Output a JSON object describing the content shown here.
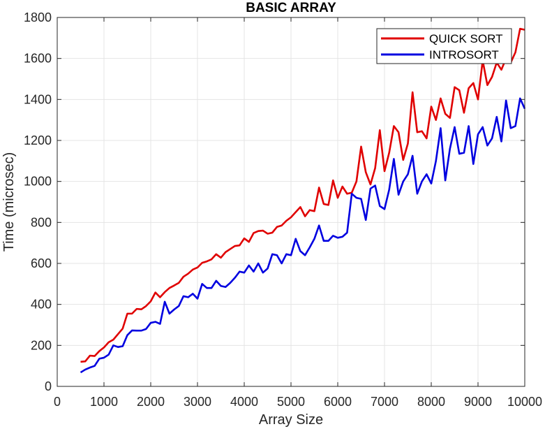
{
  "chart_data": {
    "type": "line",
    "title": "BASIC ARRAY",
    "xlabel": "Array Size",
    "ylabel": "Time (microsec)",
    "xlim": [
      0,
      10000
    ],
    "ylim": [
      0,
      1800
    ],
    "xticks": [
      0,
      1000,
      2000,
      3000,
      4000,
      5000,
      6000,
      7000,
      8000,
      9000,
      10000
    ],
    "yticks": [
      0,
      200,
      400,
      600,
      800,
      1000,
      1200,
      1400,
      1600,
      1800
    ],
    "xtick_labels": [
      "0",
      "1000",
      "2000",
      "3000",
      "4000",
      "5000",
      "6000",
      "7000",
      "8000",
      "9000",
      "10000"
    ],
    "ytick_labels": [
      "0",
      "200",
      "400",
      "600",
      "800",
      "1000",
      "1200",
      "1400",
      "1600",
      "1800"
    ],
    "grid": true,
    "legend_position": "top-right",
    "x": [
      500,
      600,
      700,
      800,
      900,
      1000,
      1100,
      1200,
      1300,
      1400,
      1500,
      1600,
      1700,
      1800,
      1900,
      2000,
      2100,
      2200,
      2300,
      2400,
      2500,
      2600,
      2700,
      2800,
      2900,
      3000,
      3100,
      3200,
      3300,
      3400,
      3500,
      3600,
      3700,
      3800,
      3900,
      4000,
      4100,
      4200,
      4300,
      4400,
      4500,
      4600,
      4700,
      4800,
      4900,
      5000,
      5100,
      5200,
      5300,
      5400,
      5500,
      5600,
      5700,
      5800,
      5900,
      6000,
      6100,
      6200,
      6300,
      6400,
      6500,
      6600,
      6700,
      6800,
      6900,
      7000,
      7100,
      7200,
      7300,
      7400,
      7500,
      7600,
      7700,
      7800,
      7900,
      8000,
      8100,
      8200,
      8300,
      8400,
      8500,
      8600,
      8700,
      8800,
      8900,
      9000,
      9100,
      9200,
      9300,
      9400,
      9500,
      9600,
      9700,
      9800,
      9900,
      10000
    ],
    "series": [
      {
        "name": "QUICK SORT",
        "color": "#e00000",
        "values": [
          120,
          122,
          150,
          148,
          172,
          190,
          215,
          228,
          255,
          282,
          355,
          355,
          378,
          376,
          392,
          415,
          458,
          435,
          460,
          480,
          492,
          505,
          535,
          550,
          570,
          580,
          603,
          610,
          620,
          645,
          628,
          655,
          670,
          685,
          688,
          722,
          705,
          748,
          758,
          760,
          745,
          750,
          778,
          785,
          808,
          825,
          850,
          875,
          830,
          860,
          855,
          970,
          890,
          885,
          1005,
          920,
          975,
          940,
          945,
          1000,
          1170,
          1045,
          985,
          1065,
          1250,
          1050,
          1140,
          1270,
          1240,
          1105,
          1185,
          1435,
          1240,
          1245,
          1210,
          1365,
          1300,
          1405,
          1330,
          1310,
          1460,
          1445,
          1335,
          1455,
          1480,
          1400,
          1590,
          1470,
          1510,
          1580,
          1545,
          1600,
          1580,
          1630,
          1745,
          1740
        ]
      },
      {
        "name": "INTROSORT",
        "color": "#0000e0",
        "values": [
          68,
          82,
          92,
          100,
          135,
          140,
          155,
          200,
          192,
          196,
          250,
          273,
          272,
          272,
          280,
          310,
          315,
          305,
          413,
          355,
          375,
          392,
          440,
          435,
          452,
          428,
          500,
          480,
          480,
          515,
          490,
          485,
          505,
          530,
          560,
          555,
          590,
          560,
          600,
          555,
          575,
          645,
          640,
          600,
          645,
          640,
          720,
          660,
          640,
          678,
          720,
          785,
          710,
          710,
          735,
          725,
          730,
          750,
          940,
          920,
          915,
          812,
          965,
          980,
          880,
          865,
          960,
          1110,
          935,
          1000,
          1035,
          1125,
          940,
          1000,
          1035,
          990,
          1100,
          1260,
          1005,
          1160,
          1265,
          1135,
          1140,
          1270,
          1085,
          1230,
          1265,
          1175,
          1210,
          1315,
          1195,
          1395,
          1260,
          1270,
          1405,
          1355
        ]
      }
    ]
  }
}
